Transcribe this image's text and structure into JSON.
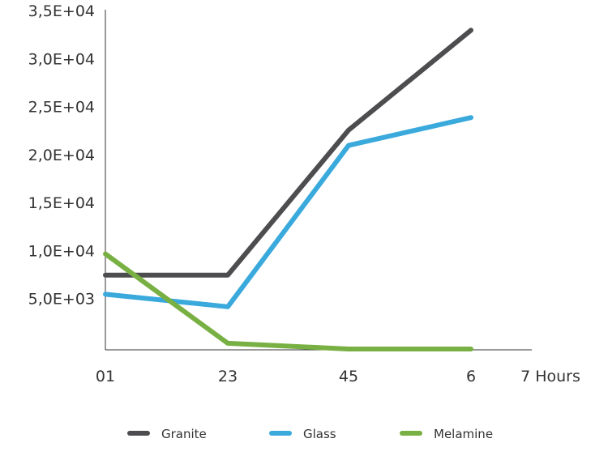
{
  "chart_data": {
    "type": "line",
    "title": "",
    "xlabel": "",
    "ylabel": "",
    "x_unit_label": "7 Hours",
    "categories": [
      "01",
      "23",
      "45",
      "6"
    ],
    "ylim": [
      0,
      35000
    ],
    "y_ticks": [
      {
        "value": 5000,
        "label": "5,0E+03"
      },
      {
        "value": 10000,
        "label": "1,0E+04"
      },
      {
        "value": 15000,
        "label": "1,5E+04"
      },
      {
        "value": 20000,
        "label": "2,0E+04"
      },
      {
        "value": 25000,
        "label": "2,5E+04"
      },
      {
        "value": 30000,
        "label": "3,0E+04"
      },
      {
        "value": 35000,
        "label": "3,5E+04"
      }
    ],
    "grid": false,
    "legend_position": "bottom",
    "series": [
      {
        "name": "Granite",
        "color": "#4d4d4f",
        "values": [
          7700,
          7700,
          22800,
          33200
        ]
      },
      {
        "name": "Glass",
        "color": "#3aa9dc",
        "values": [
          5700,
          4400,
          21200,
          24100
        ]
      },
      {
        "name": "Melamine",
        "color": "#78b043",
        "values": [
          9900,
          600,
          0,
          0
        ]
      }
    ]
  }
}
